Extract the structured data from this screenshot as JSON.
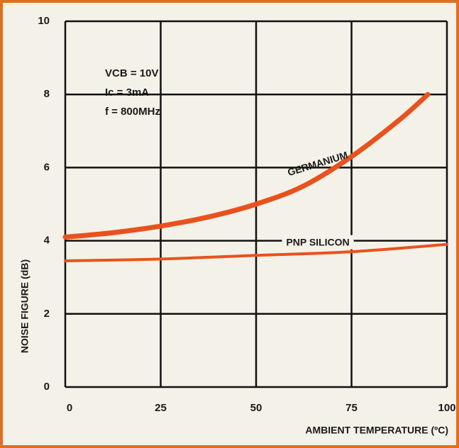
{
  "chart_data": {
    "type": "line",
    "x_label": "AMBIENT TEMPERATURE (ºC)",
    "y_label": "NOISE FIGURE (dB)",
    "annotations": [
      "VCB = 10V",
      "Ic = 3mA",
      "f = 800MHz"
    ],
    "xlim": [
      0,
      100
    ],
    "ylim": [
      0,
      10
    ],
    "xticks": [
      0,
      25,
      50,
      75,
      100
    ],
    "yticks": [
      0,
      2,
      4,
      6,
      8,
      10
    ],
    "grid": true,
    "series": [
      {
        "name": "GERMANIUM",
        "color": "#e8521e",
        "x": [
          0,
          12.5,
          25,
          37.5,
          50,
          62.5,
          75,
          87.5,
          95
        ],
        "values": [
          4.1,
          4.22,
          4.4,
          4.65,
          5.0,
          5.5,
          6.3,
          7.3,
          8.0
        ]
      },
      {
        "name": "PNP SILICON",
        "color": "#e8521e",
        "x": [
          0,
          25,
          50,
          75,
          100
        ],
        "values": [
          3.45,
          3.5,
          3.6,
          3.7,
          3.9
        ]
      }
    ]
  }
}
